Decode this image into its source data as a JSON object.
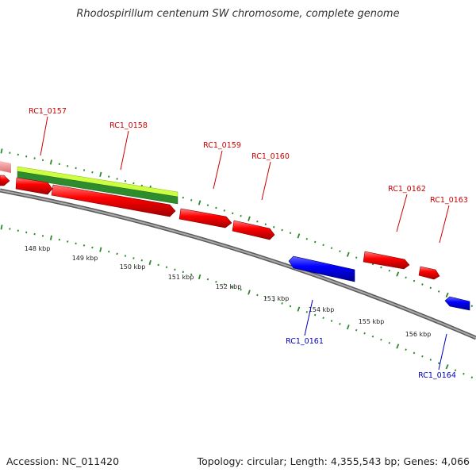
{
  "title": "Rhodospirillum centenum SW chromosome, complete genome",
  "footer": {
    "accession": "Accession: NC_011420",
    "info": "Topology: circular; Length: 4,355,543 bp; Genes: 4,066"
  },
  "colors": {
    "forward_gene": "#ff0000",
    "reverse_gene": "#0000ee",
    "forward_label": "#cc0000",
    "reverse_label": "#0000bb",
    "tick": "#2a8a2a",
    "feature_light": "#ccff44",
    "feature_dark": "#2e8b2e",
    "backbone": "#808080",
    "pink_feature": "#f08a8a"
  },
  "ruler": {
    "labels": [
      "148 kbp",
      "149 kbp",
      "150 kbp",
      "151 kbp",
      "152 kbp",
      "153 kbp",
      "154 kbp",
      "155 kbp",
      "156 kbp"
    ]
  },
  "genes": {
    "forward": [
      "RC1_0157",
      "RC1_0158",
      "RC1_0159",
      "RC1_0160",
      "RC1_0162",
      "RC1_0163"
    ],
    "reverse": [
      "RC1_0161",
      "RC1_0164"
    ]
  }
}
